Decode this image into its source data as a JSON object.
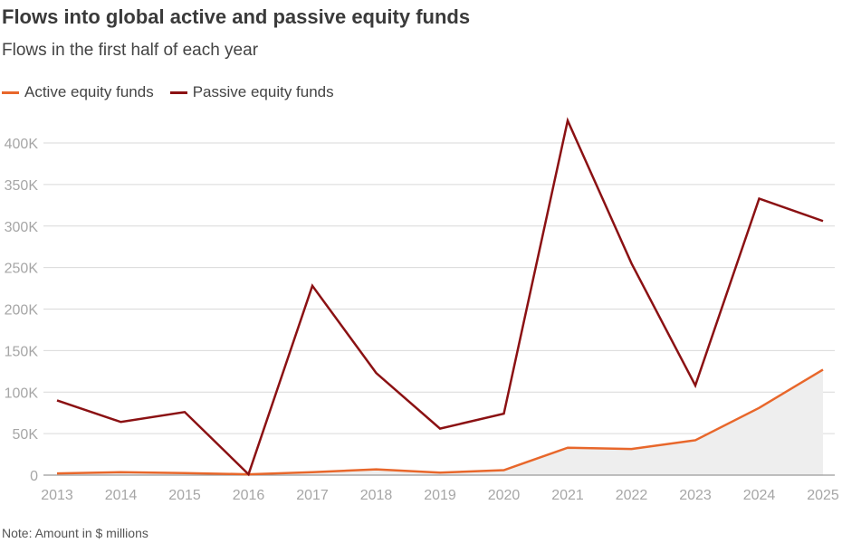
{
  "title": "Flows into global active and passive equity funds",
  "subtitle": "Flows in the first half of each year",
  "note": "Note: Amount in $ millions",
  "colors": {
    "active": "#e8672b",
    "passive": "#8b1113",
    "area": "#eeeeee",
    "grid": "#d9d9d9",
    "axis": "#9b9b9b"
  },
  "chart_data": {
    "type": "line",
    "categories": [
      "2013",
      "2014",
      "2015",
      "2016",
      "2017",
      "2018",
      "2019",
      "2020",
      "2021",
      "2022",
      "2023",
      "2024",
      "2025"
    ],
    "series": [
      {
        "name": "Active equity funds",
        "color": "#e8672b",
        "area": true,
        "values": [
          2000,
          3500,
          2500,
          1000,
          3500,
          7000,
          3000,
          6000,
          33000,
          31500,
          42000,
          81000,
          127000
        ]
      },
      {
        "name": "Passive equity funds",
        "color": "#8b1113",
        "area": false,
        "values": [
          90000,
          64000,
          76000,
          1000,
          228000,
          123000,
          56000,
          74000,
          427000,
          255000,
          108000,
          333000,
          306000
        ]
      }
    ],
    "ylim": [
      0,
      400000
    ],
    "yticks": [
      0,
      50000,
      100000,
      150000,
      200000,
      250000,
      300000,
      350000,
      400000
    ],
    "ytick_labels": [
      "0",
      "50K",
      "100K",
      "150K",
      "200K",
      "250K",
      "300K",
      "350K",
      "400K"
    ],
    "grid": true,
    "legend_position": "top-left"
  }
}
